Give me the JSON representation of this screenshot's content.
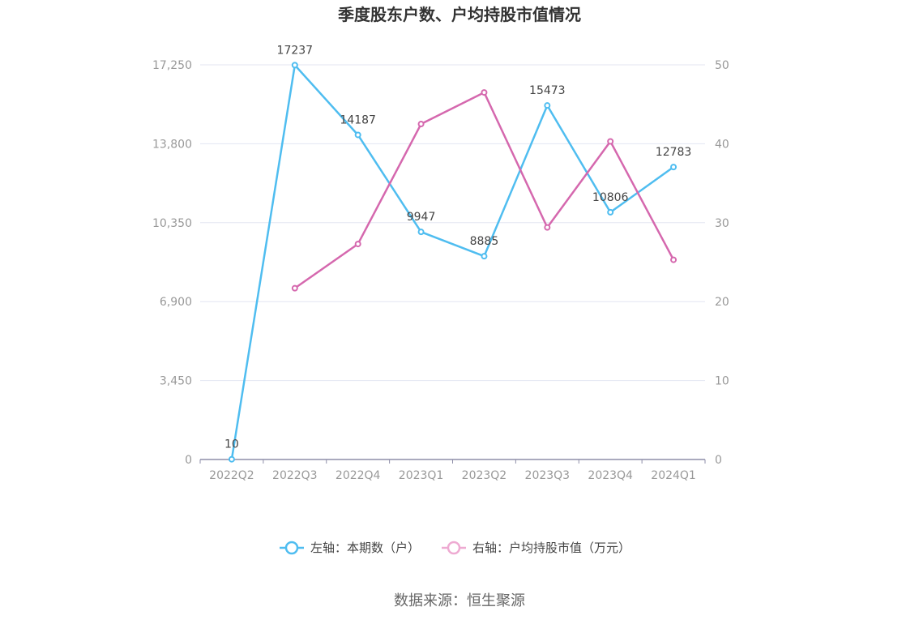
{
  "chart_data": {
    "type": "line",
    "title": "季度股东户数、户均持股市值情况",
    "categories": [
      "2022Q2",
      "2022Q3",
      "2022Q4",
      "2023Q1",
      "2023Q2",
      "2023Q3",
      "2023Q4",
      "2024Q1"
    ],
    "y_left": {
      "ticks": [
        "0",
        "3,450",
        "6,900",
        "10,350",
        "13,800",
        "17,250"
      ],
      "min": 0,
      "max": 17250
    },
    "y_right": {
      "ticks": [
        "0",
        "10",
        "20",
        "30",
        "40",
        "50"
      ],
      "min": 0,
      "max": 50
    },
    "grid": true,
    "legend_position": "bottom",
    "series": [
      {
        "name": "左轴：本期数（户）",
        "axis": "left",
        "color": "#4fbdf0",
        "values": [
          10,
          17237,
          14187,
          9947,
          8885,
          15473,
          10806,
          12783
        ],
        "labels": [
          "10",
          "17237",
          "14187",
          "9947",
          "8885",
          "15473",
          "10806",
          "12783"
        ]
      },
      {
        "name": "右轴：户均持股市值（万元）",
        "axis": "right",
        "color": "#d568ae",
        "values": [
          null,
          21.7,
          27.3,
          42.5,
          46.5,
          29.4,
          40.3,
          25.3
        ]
      }
    ],
    "source": "数据来源：恒生聚源"
  },
  "colors": {
    "grid": "#e3e6f2",
    "axis_line": "#8e8ea8",
    "left_series": "#4fbdf0",
    "right_series": "#d568ae",
    "right_legend_icon": "#eeaad2"
  }
}
